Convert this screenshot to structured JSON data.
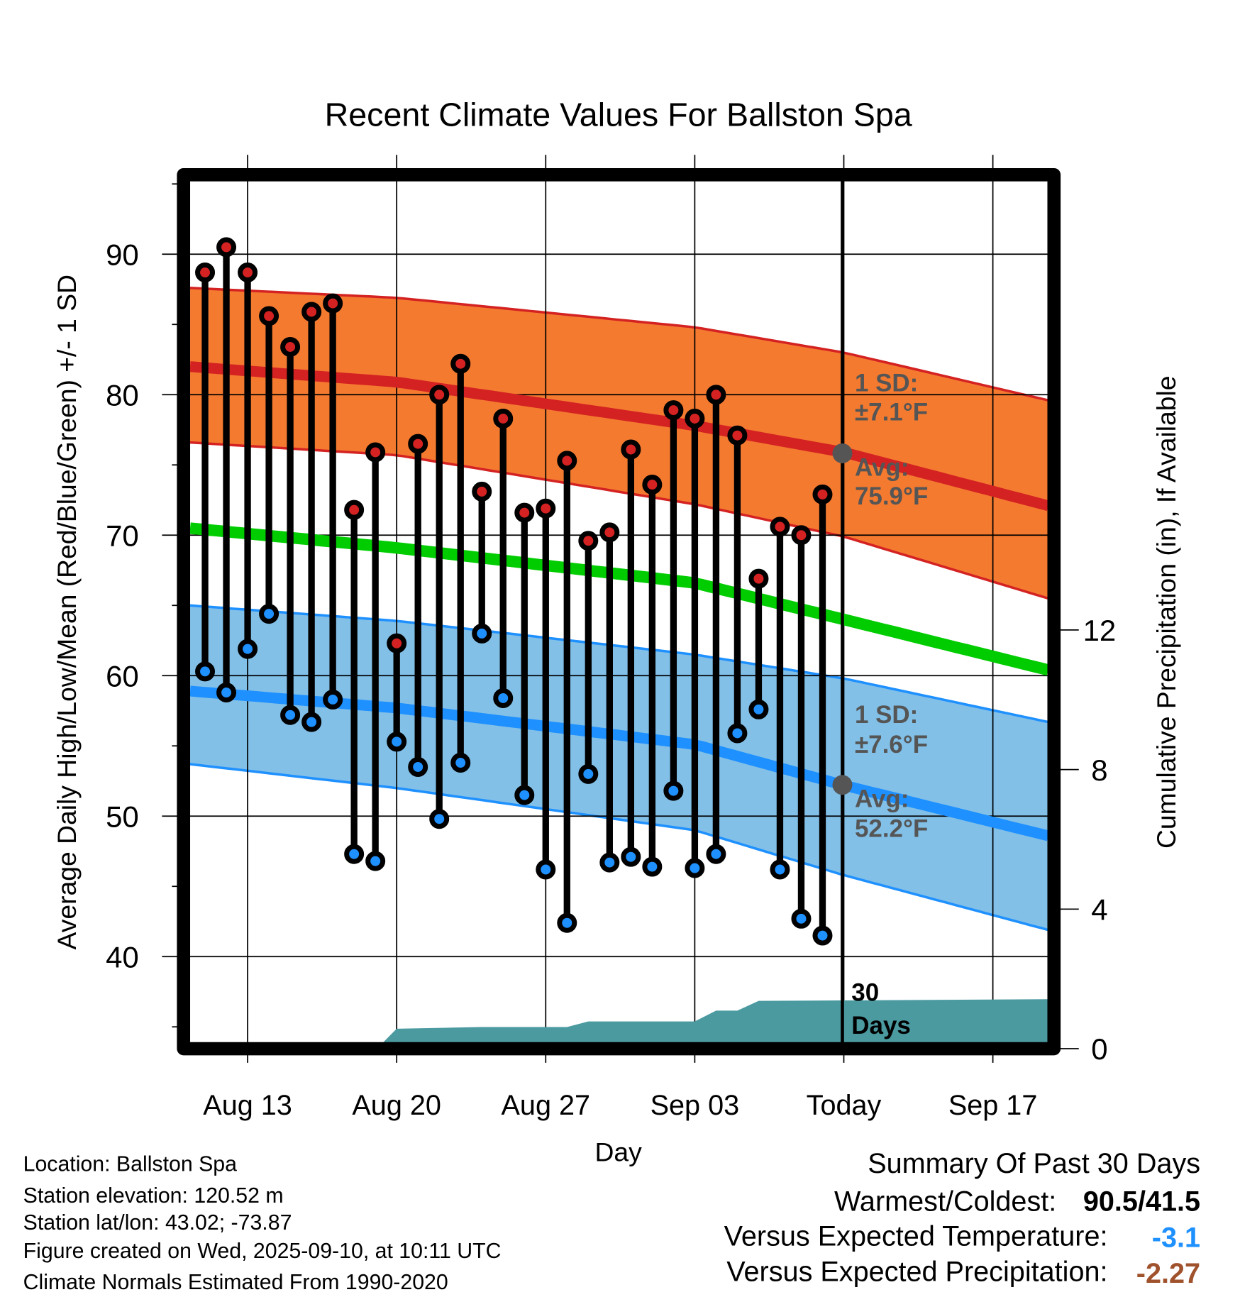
{
  "chart_data": {
    "type": "line",
    "title": "Recent Climate Values For Ballston Spa",
    "xlabel": "Day",
    "ylabel": "Average Daily High/Low/Mean (Red/Blue/Green) +/- 1 SD",
    "y2label": "Cumulative Precipitation (in), If Available",
    "ylim": [
      33.8,
      95.6
    ],
    "y2lim": [
      0,
      22.6
    ],
    "yticks": [
      "40",
      "50",
      "60",
      "70",
      "80",
      "90"
    ],
    "y2ticks": [
      "0",
      "4",
      "8",
      "12"
    ],
    "xticks": [
      {
        "label": "Aug 13",
        "day": 2
      },
      {
        "label": "Aug 20",
        "day": 9
      },
      {
        "label": "Aug 27",
        "day": 16
      },
      {
        "label": "Sep 03",
        "day": 23
      },
      {
        "label": "Today",
        "day": 30
      },
      {
        "label": "Sep 17",
        "day": 37
      }
    ],
    "x_range_days_from_aug11": [
      -0.7,
      39.6
    ],
    "grid": true,
    "daily": {
      "dates": [
        "Aug 11",
        "Aug 12",
        "Aug 13",
        "Aug 14",
        "Aug 15",
        "Aug 16",
        "Aug 17",
        "Aug 18",
        "Aug 19",
        "Aug 20",
        "Aug 21",
        "Aug 22",
        "Aug 23",
        "Aug 24",
        "Aug 25",
        "Aug 26",
        "Aug 27",
        "Aug 28",
        "Aug 29",
        "Aug 30",
        "Aug 31",
        "Sep 01",
        "Sep 02",
        "Sep 03",
        "Sep 04",
        "Sep 05",
        "Sep 06",
        "Sep 07",
        "Sep 08",
        "Sep 09"
      ],
      "high": [
        88.7,
        90.5,
        88.7,
        85.6,
        83.4,
        85.9,
        86.5,
        71.8,
        75.9,
        62.3,
        76.5,
        80.0,
        82.2,
        73.1,
        78.3,
        71.6,
        71.9,
        75.3,
        69.6,
        70.2,
        76.1,
        73.6,
        78.9,
        78.3,
        80.0,
        77.1,
        66.9,
        70.6,
        70.0,
        72.9
      ],
      "low": [
        60.3,
        58.8,
        61.9,
        64.4,
        57.2,
        56.7,
        58.3,
        47.3,
        46.8,
        55.3,
        53.5,
        49.8,
        53.8,
        63.0,
        58.4,
        51.5,
        46.2,
        42.4,
        53.0,
        46.7,
        47.1,
        46.4,
        51.8,
        46.3,
        47.3,
        55.9,
        57.6,
        46.2,
        42.7,
        41.5
      ]
    },
    "normals": {
      "days": [
        -0.7,
        9,
        23,
        30,
        39.6
      ],
      "high_avg": [
        82.0,
        80.9,
        77.8,
        75.9,
        72.1
      ],
      "high_upper": [
        87.6,
        86.9,
        84.8,
        83.0,
        79.6
      ],
      "high_lower": [
        76.6,
        75.7,
        72.2,
        69.9,
        65.5
      ],
      "mean": [
        70.5,
        69.1,
        66.6,
        64.0,
        60.4
      ],
      "low_avg": [
        58.9,
        57.7,
        55.1,
        52.2,
        48.6
      ],
      "low_upper": [
        65.0,
        63.9,
        61.5,
        59.8,
        56.7
      ],
      "low_lower": [
        53.7,
        52.0,
        49.0,
        45.8,
        41.9
      ]
    },
    "precip_cumulative": {
      "days": [
        -0.7,
        8.3,
        9.0,
        13.0,
        17.0,
        18.0,
        23.0,
        24.0,
        25.0,
        26.0,
        39.6
      ],
      "values": [
        0.14,
        0.14,
        0.57,
        0.62,
        0.62,
        0.78,
        0.78,
        1.09,
        1.09,
        1.37,
        1.42
      ]
    },
    "annotations": {
      "high_sd_line1": "1 SD:",
      "high_sd_line2": "±7.1°F",
      "high_avg_line1": "Avg:",
      "high_avg_line2": "75.9°F",
      "low_sd_line1": "1 SD:",
      "low_sd_line2": "±7.6°F",
      "low_avg_line1": "Avg:",
      "low_avg_line2": "52.2°F",
      "precip_line1": "30",
      "precip_line2": "Days"
    },
    "colors": {
      "high": "#d42222",
      "high_band": "#f47a30",
      "low": "#1e90ff",
      "low_band": "#82c0e8",
      "mean": "#00cc00",
      "precip": "#4a9aa0",
      "annotation": "#555555"
    }
  },
  "footer": {
    "location": "Location: Ballston Spa",
    "elevation": "Station elevation: 120.52 m",
    "latlon": "Station lat/lon: 43.02; -73.87",
    "created": "Figure created on Wed, 2025-09-10, at 10:11 UTC",
    "normals": "Climate Normals Estimated From 1990-2020"
  },
  "summary": {
    "title": "Summary Of Past 30 Days",
    "warm_cold_label": "Warmest/Coldest:",
    "warm_cold_value": "90.5/41.5",
    "temp_label": "Versus Expected Temperature:",
    "temp_value": "-3.1",
    "temp_color": "#1e90ff",
    "precip_label": "Versus Expected Precipitation:",
    "precip_value": "-2.27",
    "precip_color": "#a0522d"
  }
}
